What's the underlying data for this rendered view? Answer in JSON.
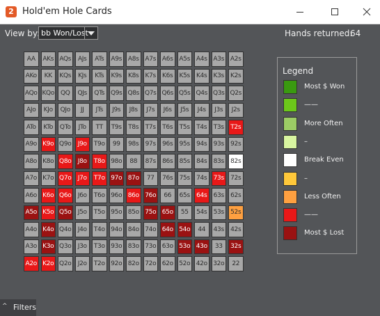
{
  "window": {
    "icon_glyph": "2",
    "title": "Hold'em Hole Cards"
  },
  "toolbar": {
    "view_by_label": "View by:",
    "view_by_value": "bb Won/Lost",
    "hands_returned_label": "Hands returned:",
    "hands_returned_value": "64"
  },
  "colors": {
    "neutral": "#a8a8a8",
    "most_won": "#3a9a10",
    "won": "#6cc81a",
    "more_often": "#9ccc65",
    "light_won": "#d8f5a0",
    "break_even": "#ffffff",
    "light_lost": "#ffc83a",
    "less_often": "#ffa040",
    "lost": "#e81818",
    "most_lost": "#9a1212"
  },
  "legend": {
    "title": "Legend",
    "items": [
      {
        "label": "Most $ Won",
        "color": "#3a9a10"
      },
      {
        "label": "——",
        "color": "#6cc81a"
      },
      {
        "label": "More Often",
        "color": "#9ccc65"
      },
      {
        "label": "–",
        "color": "#d8f5a0"
      },
      {
        "label": "Break Even",
        "color": "#ffffff"
      },
      {
        "label": "–",
        "color": "#ffc83a"
      },
      {
        "label": "Less Often",
        "color": "#ffa040"
      },
      {
        "label": "——",
        "color": "#e81818"
      },
      {
        "label": "Most $ Lost",
        "color": "#9a1212"
      }
    ]
  },
  "grid": {
    "rows": [
      [
        {
          "t": "AA"
        },
        {
          "t": "AKs"
        },
        {
          "t": "AQs"
        },
        {
          "t": "AJs"
        },
        {
          "t": "ATs"
        },
        {
          "t": "A9s"
        },
        {
          "t": "A8s"
        },
        {
          "t": "A7s"
        },
        {
          "t": "A6s"
        },
        {
          "t": "A5s"
        },
        {
          "t": "A4s"
        },
        {
          "t": "A3s"
        },
        {
          "t": "A2s"
        }
      ],
      [
        {
          "t": "AKo"
        },
        {
          "t": "KK"
        },
        {
          "t": "KQs"
        },
        {
          "t": "KJs"
        },
        {
          "t": "KTs"
        },
        {
          "t": "K9s"
        },
        {
          "t": "K8s"
        },
        {
          "t": "K7s"
        },
        {
          "t": "K6s"
        },
        {
          "t": "K5s"
        },
        {
          "t": "K4s"
        },
        {
          "t": "K3s"
        },
        {
          "t": "K2s"
        }
      ],
      [
        {
          "t": "AQo"
        },
        {
          "t": "KQo"
        },
        {
          "t": "QQ"
        },
        {
          "t": "QJs"
        },
        {
          "t": "QTs"
        },
        {
          "t": "Q9s"
        },
        {
          "t": "Q8s"
        },
        {
          "t": "Q7s"
        },
        {
          "t": "Q6s"
        },
        {
          "t": "Q5s"
        },
        {
          "t": "Q4s"
        },
        {
          "t": "Q3s"
        },
        {
          "t": "Q2s"
        }
      ],
      [
        {
          "t": "AJo"
        },
        {
          "t": "KJo"
        },
        {
          "t": "QJo"
        },
        {
          "t": "JJ"
        },
        {
          "t": "JTs"
        },
        {
          "t": "J9s"
        },
        {
          "t": "J8s"
        },
        {
          "t": "J7s"
        },
        {
          "t": "J6s"
        },
        {
          "t": "J5s"
        },
        {
          "t": "J4s"
        },
        {
          "t": "J3s"
        },
        {
          "t": "J2s"
        }
      ],
      [
        {
          "t": "ATo"
        },
        {
          "t": "KTo"
        },
        {
          "t": "QTo"
        },
        {
          "t": "JTo"
        },
        {
          "t": "TT"
        },
        {
          "t": "T9s"
        },
        {
          "t": "T8s"
        },
        {
          "t": "T7s"
        },
        {
          "t": "T6s"
        },
        {
          "t": "T5s"
        },
        {
          "t": "T4s"
        },
        {
          "t": "T3s"
        },
        {
          "t": "T2s",
          "c": "lost"
        }
      ],
      [
        {
          "t": "A9o"
        },
        {
          "t": "K9o",
          "c": "lost"
        },
        {
          "t": "Q9o"
        },
        {
          "t": "J9o",
          "c": "lost"
        },
        {
          "t": "T9o"
        },
        {
          "t": "99"
        },
        {
          "t": "98s"
        },
        {
          "t": "97s"
        },
        {
          "t": "96s"
        },
        {
          "t": "95s"
        },
        {
          "t": "94s"
        },
        {
          "t": "93s"
        },
        {
          "t": "92s"
        }
      ],
      [
        {
          "t": "A8o"
        },
        {
          "t": "K8o"
        },
        {
          "t": "Q8o",
          "c": "lost"
        },
        {
          "t": "J8o",
          "c": "most_lost"
        },
        {
          "t": "T8o",
          "c": "lost"
        },
        {
          "t": "98o"
        },
        {
          "t": "88"
        },
        {
          "t": "87s"
        },
        {
          "t": "86s"
        },
        {
          "t": "85s"
        },
        {
          "t": "84s"
        },
        {
          "t": "83s"
        },
        {
          "t": "82s",
          "c": "break_even"
        }
      ],
      [
        {
          "t": "A7o"
        },
        {
          "t": "K7o"
        },
        {
          "t": "Q7o",
          "c": "lost"
        },
        {
          "t": "J7o",
          "c": "lost"
        },
        {
          "t": "T7o",
          "c": "lost"
        },
        {
          "t": "97o",
          "c": "most_lost"
        },
        {
          "t": "87o",
          "c": "most_lost"
        },
        {
          "t": "77"
        },
        {
          "t": "76s"
        },
        {
          "t": "75s"
        },
        {
          "t": "74s"
        },
        {
          "t": "73s",
          "c": "lost"
        },
        {
          "t": "72s"
        }
      ],
      [
        {
          "t": "A6o"
        },
        {
          "t": "K6o",
          "c": "lost"
        },
        {
          "t": "Q6o",
          "c": "lost"
        },
        {
          "t": "J6o"
        },
        {
          "t": "T6o"
        },
        {
          "t": "96o"
        },
        {
          "t": "86o",
          "c": "lost"
        },
        {
          "t": "76o",
          "c": "most_lost"
        },
        {
          "t": "66"
        },
        {
          "t": "65s"
        },
        {
          "t": "64s",
          "c": "lost"
        },
        {
          "t": "63s"
        },
        {
          "t": "62s"
        }
      ],
      [
        {
          "t": "A5o",
          "c": "most_lost"
        },
        {
          "t": "K5o",
          "c": "lost"
        },
        {
          "t": "Q5o",
          "c": "most_lost"
        },
        {
          "t": "J5o"
        },
        {
          "t": "T5o"
        },
        {
          "t": "95o"
        },
        {
          "t": "85o"
        },
        {
          "t": "75o",
          "c": "most_lost"
        },
        {
          "t": "65o",
          "c": "most_lost"
        },
        {
          "t": "55"
        },
        {
          "t": "54s"
        },
        {
          "t": "53s"
        },
        {
          "t": "52s",
          "c": "less_often"
        }
      ],
      [
        {
          "t": "A4o"
        },
        {
          "t": "K4o",
          "c": "most_lost"
        },
        {
          "t": "Q4o"
        },
        {
          "t": "J4o"
        },
        {
          "t": "T4o"
        },
        {
          "t": "94o"
        },
        {
          "t": "84o"
        },
        {
          "t": "74o"
        },
        {
          "t": "64o",
          "c": "most_lost"
        },
        {
          "t": "54o",
          "c": "most_lost"
        },
        {
          "t": "44"
        },
        {
          "t": "43s"
        },
        {
          "t": "42s"
        }
      ],
      [
        {
          "t": "A3o"
        },
        {
          "t": "K3o",
          "c": "most_lost"
        },
        {
          "t": "Q3o"
        },
        {
          "t": "J3o"
        },
        {
          "t": "T3o"
        },
        {
          "t": "93o"
        },
        {
          "t": "83o"
        },
        {
          "t": "73o"
        },
        {
          "t": "63o"
        },
        {
          "t": "53o",
          "c": "most_lost"
        },
        {
          "t": "43o",
          "c": "most_lost"
        },
        {
          "t": "33"
        },
        {
          "t": "32s",
          "c": "most_lost"
        }
      ],
      [
        {
          "t": "A2o",
          "c": "lost"
        },
        {
          "t": "K2o",
          "c": "lost"
        },
        {
          "t": "Q2o"
        },
        {
          "t": "J2o"
        },
        {
          "t": "T2o"
        },
        {
          "t": "92o"
        },
        {
          "t": "82o"
        },
        {
          "t": "72o"
        },
        {
          "t": "62o"
        },
        {
          "t": "52o"
        },
        {
          "t": "42o"
        },
        {
          "t": "32o"
        },
        {
          "t": "22"
        }
      ]
    ]
  },
  "filters": {
    "label": "Filters"
  }
}
